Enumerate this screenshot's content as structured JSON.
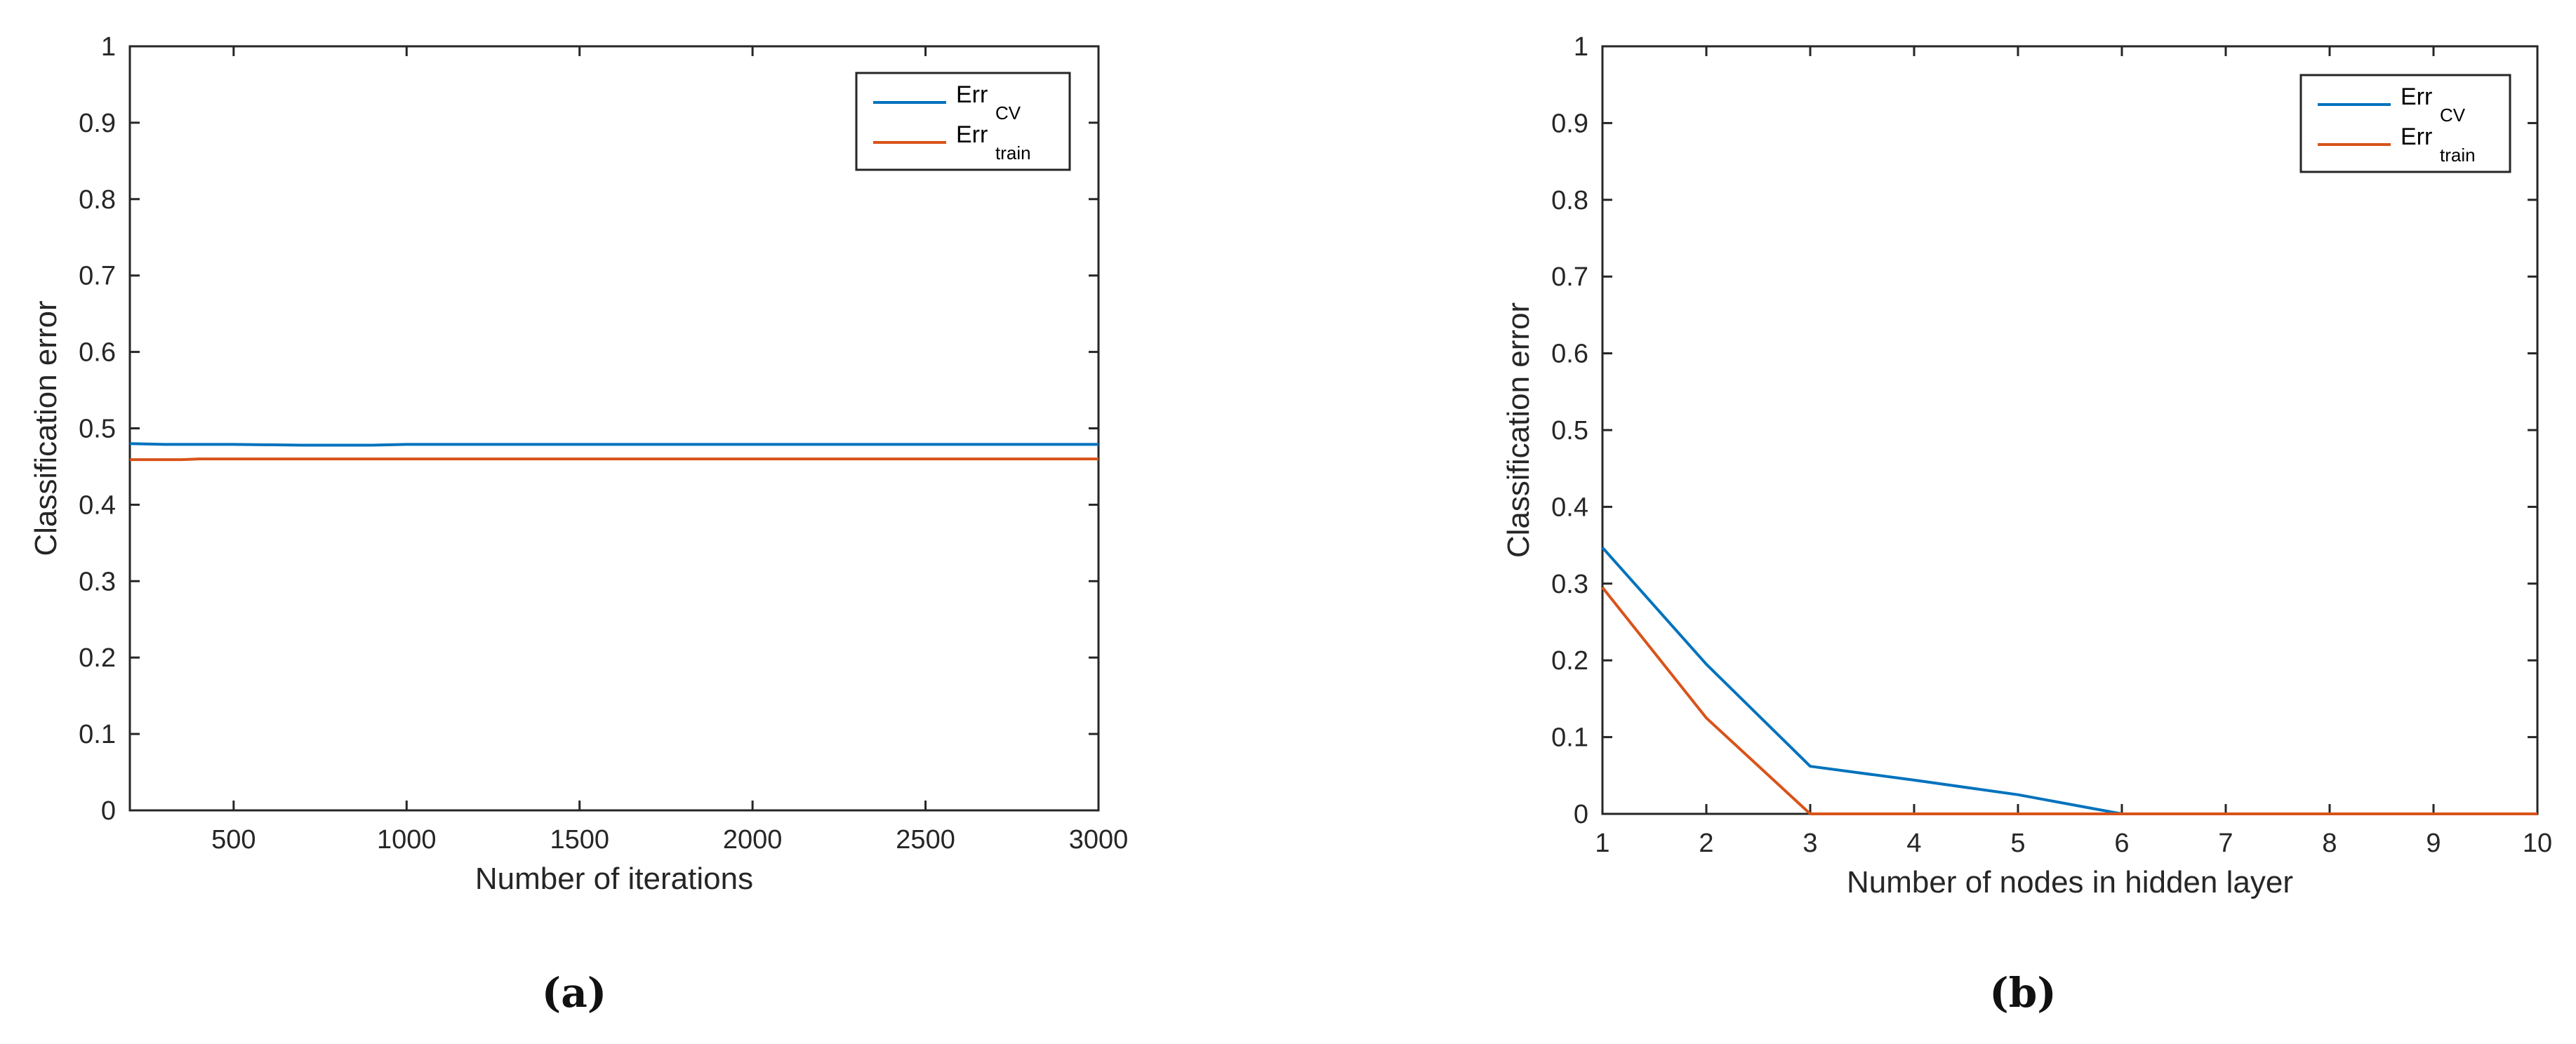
{
  "chart_data": [
    {
      "type": "line",
      "caption": "(a)",
      "xlabel": "Number of iterations",
      "ylabel": "Classification error",
      "xlim": [
        200,
        3000
      ],
      "ylim": [
        0,
        1
      ],
      "xticks": [
        500,
        1000,
        1500,
        2000,
        2500,
        3000
      ],
      "yticks": [
        0,
        0.1,
        0.2,
        0.3,
        0.4,
        0.5,
        0.6,
        0.7,
        0.8,
        0.9,
        1
      ],
      "ytick_labels": [
        "0",
        "0.1",
        "0.2",
        "0.3",
        "0.4",
        "0.5",
        "0.6",
        "0.7",
        "0.8",
        "0.9",
        "1"
      ],
      "grid": false,
      "legend_position": "top-right",
      "series": [
        {
          "name": "Err",
          "name_subscript": "CV",
          "color": "#0072BD",
          "x": [
            200,
            300,
            500,
            700,
            900,
            1000,
            1500,
            2000,
            2500,
            3000
          ],
          "values": [
            0.48,
            0.479,
            0.479,
            0.478,
            0.478,
            0.479,
            0.479,
            0.479,
            0.479,
            0.479
          ]
        },
        {
          "name": "Err",
          "name_subscript": "train",
          "color": "#D95319",
          "x": [
            200,
            300,
            350,
            400,
            500,
            1000,
            1500,
            2000,
            2500,
            3000
          ],
          "values": [
            0.459,
            0.459,
            0.459,
            0.46,
            0.46,
            0.46,
            0.46,
            0.46,
            0.46,
            0.46
          ]
        }
      ]
    },
    {
      "type": "line",
      "caption": "(b)",
      "xlabel": "Number of nodes in hidden layer",
      "ylabel": "Classification error",
      "xlim": [
        1,
        10
      ],
      "ylim": [
        0,
        1
      ],
      "xticks": [
        1,
        2,
        3,
        4,
        5,
        6,
        7,
        8,
        9,
        10
      ],
      "yticks": [
        0,
        0.1,
        0.2,
        0.3,
        0.4,
        0.5,
        0.6,
        0.7,
        0.8,
        0.9,
        1
      ],
      "ytick_labels": [
        "0",
        "0.1",
        "0.2",
        "0.3",
        "0.4",
        "0.5",
        "0.6",
        "0.7",
        "0.8",
        "0.9",
        "1"
      ],
      "grid": false,
      "legend_position": "top-right",
      "series": [
        {
          "name": "Err",
          "name_subscript": "CV",
          "color": "#0072BD",
          "x": [
            1,
            2,
            3,
            4,
            5,
            6,
            7,
            8,
            9,
            10
          ],
          "values": [
            0.347,
            0.195,
            0.062,
            0.044,
            0.025,
            0,
            0,
            0,
            0,
            0
          ]
        },
        {
          "name": "Err",
          "name_subscript": "train",
          "color": "#D95319",
          "x": [
            1,
            2,
            3,
            4,
            5,
            6,
            7,
            8,
            9,
            10
          ],
          "values": [
            0.295,
            0.125,
            0,
            0,
            0,
            0,
            0,
            0,
            0,
            0
          ]
        }
      ]
    }
  ]
}
